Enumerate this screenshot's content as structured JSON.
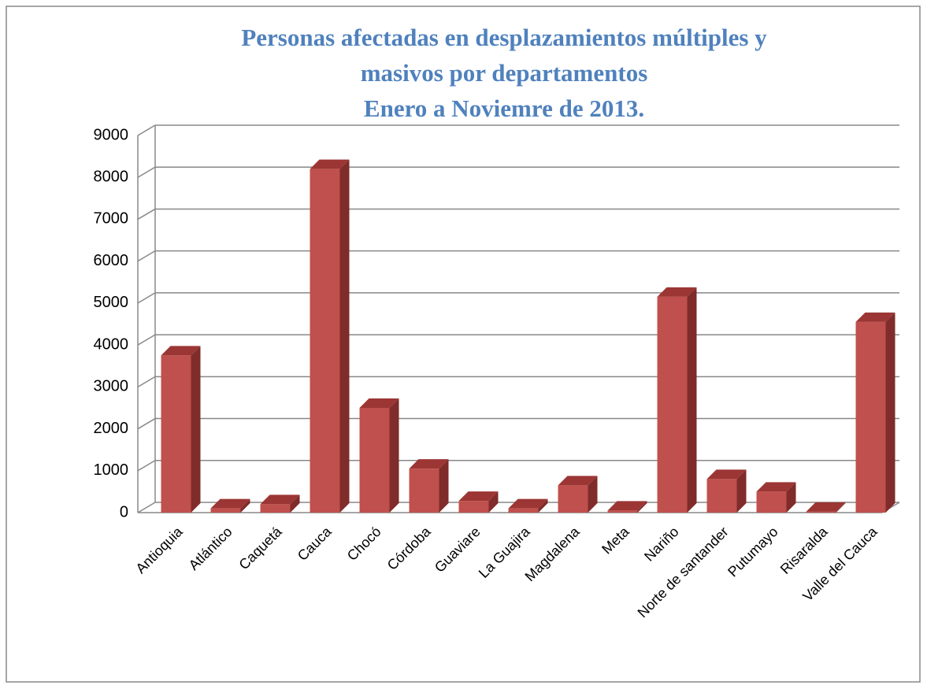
{
  "chart_data": {
    "type": "bar",
    "title": [
      "Personas afectadas en desplazamientos múltiples y",
      "masivos por departamentos",
      "Enero a Noviemre de 2013."
    ],
    "categories": [
      "Antioquia",
      "Atlántico",
      "Caquetá",
      "Cauca",
      "Chocó",
      "Córdoba",
      "Guaviare",
      "La Guajira",
      "Magdalena",
      "Meta",
      "Nariño",
      "Norte de santander",
      "Putumayo",
      "Risaralda",
      "Valle del Cauca"
    ],
    "values": [
      3750,
      100,
      200,
      8200,
      2500,
      1050,
      280,
      100,
      650,
      50,
      5150,
      800,
      500,
      20,
      4550
    ],
    "color": "#c0504d",
    "ylim": [
      0,
      9000
    ],
    "yticks": [
      0,
      1000,
      2000,
      3000,
      4000,
      5000,
      6000,
      7000,
      8000,
      9000
    ],
    "grid": true
  }
}
